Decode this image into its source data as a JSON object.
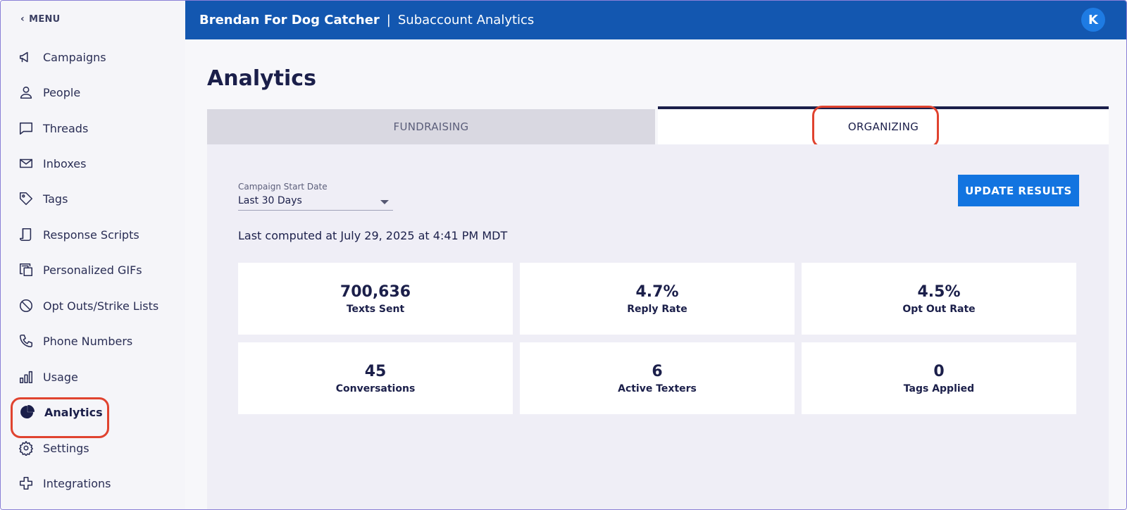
{
  "sidebar": {
    "menu_label": "MENU",
    "items": [
      {
        "label": "Campaigns",
        "icon": "megaphone-icon"
      },
      {
        "label": "People",
        "icon": "person-icon"
      },
      {
        "label": "Threads",
        "icon": "chat-bubble-icon"
      },
      {
        "label": "Inboxes",
        "icon": "envelope-icon"
      },
      {
        "label": "Tags",
        "icon": "tag-icon"
      },
      {
        "label": "Response Scripts",
        "icon": "script-icon"
      },
      {
        "label": "Personalized GIFs",
        "icon": "copy-stack-icon"
      },
      {
        "label": "Opt Outs/Strike Lists",
        "icon": "block-icon"
      },
      {
        "label": "Phone Numbers",
        "icon": "phone-icon"
      },
      {
        "label": "Usage",
        "icon": "bar-chart-icon"
      },
      {
        "label": "Analytics",
        "icon": "pie-chart-icon"
      },
      {
        "label": "Settings",
        "icon": "gear-icon"
      },
      {
        "label": "Integrations",
        "icon": "plus-outline-icon"
      }
    ],
    "active_item": "Analytics"
  },
  "header": {
    "org_name": "Brendan For Dog Catcher",
    "separator": "|",
    "subtitle": "Subaccount Analytics",
    "avatar_initial": "K"
  },
  "page": {
    "title": "Analytics",
    "tabs": [
      {
        "label": "FUNDRAISING",
        "active": false
      },
      {
        "label": "ORGANIZING",
        "active": true
      }
    ]
  },
  "filters": {
    "date_label": "Campaign Start Date",
    "date_value": "Last 30 Days",
    "update_button": "UPDATE RESULTS"
  },
  "computed_text": "Last computed at July 29, 2025 at 4:41 PM MDT",
  "stats": [
    {
      "value": "700,636",
      "label": "Texts Sent"
    },
    {
      "value": "4.7%",
      "label": "Reply Rate"
    },
    {
      "value": "4.5%",
      "label": "Opt Out Rate"
    },
    {
      "value": "45",
      "label": "Conversations"
    },
    {
      "value": "6",
      "label": "Active Texters"
    },
    {
      "value": "0",
      "label": "Tags Applied"
    }
  ],
  "colors": {
    "header_bg": "#1357b0",
    "button_bg": "#1274e0",
    "highlight": "#e0432f",
    "text_dark": "#1b1f4a"
  }
}
